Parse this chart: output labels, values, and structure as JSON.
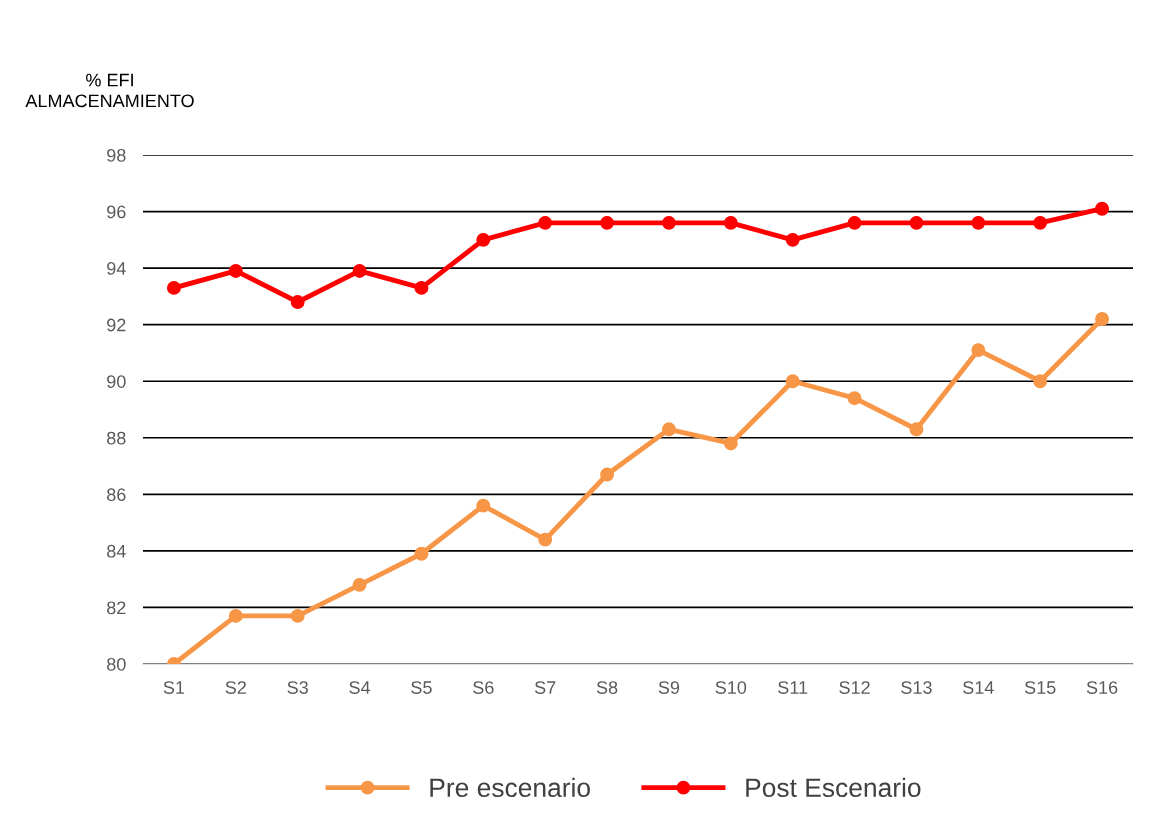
{
  "chart_data": {
    "type": "line",
    "ylabel": "% EFI\nALMACENAMIENTO",
    "categories": [
      "S1",
      "S2",
      "S3",
      "S4",
      "S5",
      "S6",
      "S7",
      "S8",
      "S9",
      "S10",
      "S11",
      "S12",
      "S13",
      "S14",
      "S15",
      "S16"
    ],
    "series": [
      {
        "name": "Pre escenario",
        "color": "#f79646",
        "values": [
          80,
          81.7,
          81.7,
          82.8,
          83.9,
          85.6,
          84.4,
          86.7,
          88.3,
          87.8,
          90.0,
          89.4,
          88.3,
          91.1,
          90.0,
          92.2
        ]
      },
      {
        "name": "Post Escenario",
        "color": "#ff0000",
        "values": [
          93.3,
          93.9,
          92.8,
          93.9,
          93.3,
          95.0,
          95.6,
          95.6,
          95.6,
          95.6,
          95.0,
          95.6,
          95.6,
          95.6,
          95.6,
          96.1
        ]
      }
    ],
    "ylim": [
      80,
      98
    ],
    "yticks": [
      80,
      82,
      84,
      86,
      88,
      90,
      92,
      94,
      96,
      98
    ],
    "grid": "y",
    "legend": "bottom",
    "marker": "circle",
    "line_style": "solid"
  }
}
